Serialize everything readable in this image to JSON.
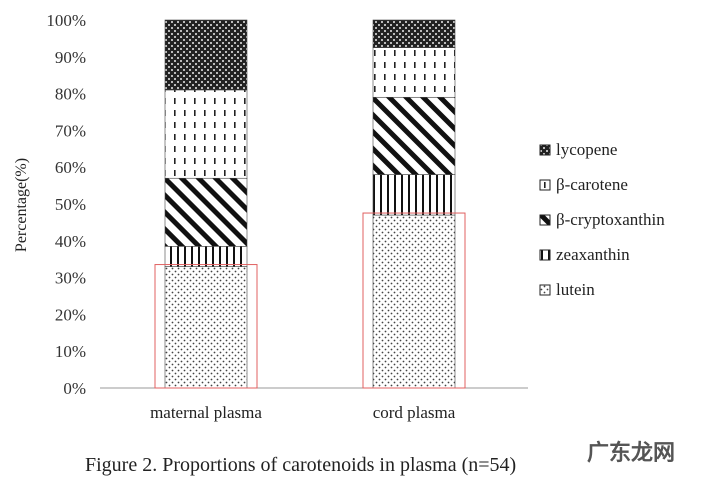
{
  "chart_data": {
    "type": "bar",
    "stacked": true,
    "percent": true,
    "ylabel": "Percentage(%)",
    "ylim": [
      0,
      100
    ],
    "yticks": [
      "0%",
      "10%",
      "20%",
      "30%",
      "40%",
      "50%",
      "60%",
      "70%",
      "80%",
      "90%",
      "100%"
    ],
    "categories": [
      "maternal plasma",
      "cord plasma"
    ],
    "series": [
      {
        "name": "lutein",
        "values": [
          33,
          47
        ],
        "pattern": "dots"
      },
      {
        "name": "zeaxanthin",
        "values": [
          5.5,
          11
        ],
        "pattern": "vlines"
      },
      {
        "name": "β-cryptoxanthin",
        "values": [
          18.5,
          21
        ],
        "pattern": "diag"
      },
      {
        "name": "β-carotene",
        "values": [
          24,
          13.5
        ],
        "pattern": "dashes"
      },
      {
        "name": "lycopene",
        "values": [
          19,
          7.5
        ],
        "pattern": "check"
      }
    ],
    "legend_order": [
      "lycopene",
      "β-carotene",
      "β-cryptoxanthin",
      "zeaxanthin",
      "lutein"
    ],
    "legend_position": "right",
    "highlight": {
      "series": "lutein",
      "color": "#e06060"
    },
    "grid": false
  },
  "caption": "Figure 2. Proportions of carotenoids in plasma (n=54)",
  "watermark": "广东龙网"
}
